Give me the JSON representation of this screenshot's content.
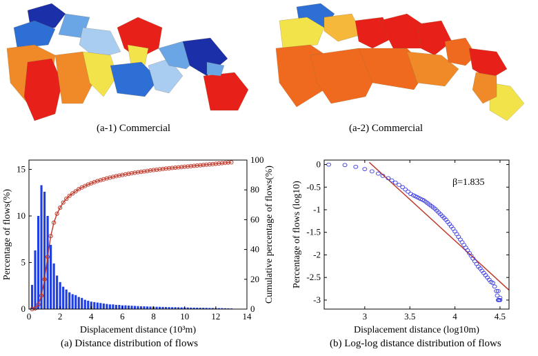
{
  "maps": [
    {
      "caption": "(a-1) Commercial"
    },
    {
      "caption": "(a-2) Commercial"
    }
  ],
  "captions": {
    "a": "(a) Distance distribution of flows",
    "b": "(b) Log-log distance distribution of flows"
  },
  "colors": {
    "bar": "#1f3fe0",
    "cum_line": "#c0392b",
    "scatter": "#3a3ae0",
    "fit": "#c0392b",
    "map_hot": [
      "#e8201a",
      "#ef6a1e",
      "#f08a28",
      "#f5b83a",
      "#f2e34a"
    ],
    "map_cold": [
      "#1a2fa8",
      "#2e6fd6",
      "#6aa6e6",
      "#a9cdf0",
      "#d8ecf7"
    ]
  },
  "chart_data": [
    {
      "type": "bar",
      "xlabel": "Displacement distance (10³m)",
      "ylabel": "Percentage of flows(%)",
      "y2label": "Cumulative percentage of flows(%)",
      "xlim": [
        0,
        14
      ],
      "ylim": [
        0,
        16
      ],
      "y2lim": [
        0,
        100
      ],
      "xticks": [
        0,
        2,
        4,
        6,
        8,
        10,
        12,
        14
      ],
      "yticks": [
        0,
        5,
        10,
        15
      ],
      "y2ticks": [
        0,
        20,
        40,
        60,
        80,
        100
      ],
      "bar_x": [
        0.2,
        0.4,
        0.6,
        0.8,
        1.0,
        1.2,
        1.4,
        1.6,
        1.8,
        2.0,
        2.2,
        2.4,
        2.6,
        2.8,
        3.0,
        3.2,
        3.4,
        3.6,
        3.8,
        4.0,
        4.2,
        4.4,
        4.6,
        4.8,
        5.0,
        5.2,
        5.4,
        5.6,
        5.8,
        6.0,
        6.2,
        6.4,
        6.6,
        6.8,
        7.0,
        7.2,
        7.4,
        7.6,
        7.8,
        8.0,
        8.2,
        8.4,
        8.6,
        8.8,
        9.0,
        9.2,
        9.4,
        9.6,
        9.8,
        10.0,
        10.2,
        10.4,
        10.6,
        10.8,
        11.0,
        11.2,
        11.4,
        11.6,
        11.8,
        12.0,
        12.2,
        12.4,
        12.6,
        12.8,
        13.0
      ],
      "values": [
        2.6,
        6.3,
        10.0,
        13.3,
        12.6,
        10.0,
        6.9,
        4.9,
        3.6,
        2.9,
        2.4,
        2.1,
        1.8,
        1.6,
        1.5,
        1.3,
        1.2,
        1.0,
        0.9,
        0.8,
        0.75,
        0.7,
        0.65,
        0.6,
        0.55,
        0.5,
        0.5,
        0.45,
        0.45,
        0.4,
        0.4,
        0.38,
        0.36,
        0.34,
        0.32,
        0.3,
        0.3,
        0.28,
        0.27,
        0.26,
        0.25,
        0.24,
        0.23,
        0.22,
        0.21,
        0.2,
        0.2,
        0.19,
        0.18,
        0.18,
        0.17,
        0.16,
        0.15,
        0.15,
        0.14,
        0.14,
        0.13,
        0.12,
        0.12,
        0.11,
        0.1,
        0.1,
        0.09,
        0.08,
        0.07
      ],
      "cumulative": {
        "x": [
          0.2,
          0.4,
          0.6,
          0.8,
          1.0,
          1.2,
          1.4,
          1.6,
          1.8,
          2.0,
          2.2,
          2.4,
          2.6,
          2.8,
          3.0,
          3.2,
          3.4,
          3.6,
          3.8,
          4.0,
          4.2,
          4.4,
          4.6,
          4.8,
          5.0,
          5.2,
          5.4,
          5.6,
          5.8,
          6.0,
          6.2,
          6.4,
          6.6,
          6.8,
          7.0,
          7.2,
          7.4,
          7.6,
          7.8,
          8.0,
          8.2,
          8.4,
          8.6,
          8.8,
          9.0,
          9.2,
          9.4,
          9.6,
          9.8,
          10.0,
          10.2,
          10.4,
          10.6,
          10.8,
          11.0,
          11.2,
          11.4,
          11.6,
          11.8,
          12.0,
          12.2,
          12.4,
          12.6,
          12.8,
          13.0
        ],
        "y": [
          0,
          0.5,
          3,
          9,
          20,
          35,
          49,
          58,
          64,
          68,
          71.5,
          74,
          76,
          77.6,
          79,
          80.5,
          81.6,
          82.6,
          83.6,
          84.4,
          85.2,
          85.9,
          86.5,
          87.1,
          87.7,
          88.2,
          88.7,
          89.2,
          89.6,
          90.0,
          90.4,
          90.8,
          91.2,
          91.5,
          91.8,
          92.1,
          92.4,
          92.7,
          93.0,
          93.3,
          93.5,
          93.8,
          94.0,
          94.3,
          94.5,
          94.7,
          94.9,
          95.1,
          95.3,
          95.5,
          95.7,
          95.9,
          96.1,
          96.3,
          96.5,
          96.7,
          96.9,
          97.1,
          97.3,
          97.5,
          97.7,
          97.9,
          98.1,
          98.3,
          98.5
        ]
      }
    },
    {
      "type": "scatter",
      "xlabel": "Displacement distance (log10m)",
      "ylabel": "Percentage of flows (log10)",
      "annotation": "β=1.835",
      "xlim": [
        2.55,
        4.6
      ],
      "ylim": [
        -3.2,
        0.1
      ],
      "xticks": [
        3,
        3.5,
        4,
        4.5
      ],
      "yticks": [
        0,
        -0.5,
        -1,
        -1.5,
        -2,
        -2.5,
        -3
      ],
      "xticklabels": [
        "3",
        "3.5",
        "4",
        "4.5"
      ],
      "yticklabels": [
        "0",
        "-0.5",
        "-1",
        "-1.5",
        "-2",
        "-2.5",
        "-3"
      ],
      "x": [
        2.6,
        2.78,
        2.9,
        3.0,
        3.08,
        3.15,
        3.2,
        3.26,
        3.3,
        3.34,
        3.38,
        3.42,
        3.45,
        3.48,
        3.51,
        3.54,
        3.56,
        3.58,
        3.6,
        3.62,
        3.64,
        3.66,
        3.68,
        3.7,
        3.72,
        3.74,
        3.76,
        3.78,
        3.8,
        3.82,
        3.84,
        3.86,
        3.88,
        3.9,
        3.92,
        3.94,
        3.96,
        3.98,
        4.0,
        4.02,
        4.04,
        4.06,
        4.08,
        4.1,
        4.12,
        4.14,
        4.16,
        4.18,
        4.2,
        4.22,
        4.24,
        4.26,
        4.28,
        4.3,
        4.32,
        4.34,
        4.36,
        4.38,
        4.4,
        4.42,
        4.44,
        4.46,
        4.47,
        4.48,
        4.48,
        4.49,
        4.5,
        4.5
      ],
      "y": [
        0,
        -0.01,
        -0.05,
        -0.1,
        -0.15,
        -0.2,
        -0.25,
        -0.3,
        -0.35,
        -0.4,
        -0.45,
        -0.5,
        -0.55,
        -0.6,
        -0.65,
        -0.68,
        -0.7,
        -0.72,
        -0.74,
        -0.76,
        -0.78,
        -0.8,
        -0.83,
        -0.86,
        -0.89,
        -0.92,
        -0.95,
        -0.98,
        -1.02,
        -1.06,
        -1.1,
        -1.14,
        -1.18,
        -1.22,
        -1.27,
        -1.32,
        -1.37,
        -1.42,
        -1.48,
        -1.54,
        -1.6,
        -1.66,
        -1.72,
        -1.78,
        -1.84,
        -1.9,
        -1.96,
        -2.02,
        -2.08,
        -2.14,
        -2.2,
        -2.26,
        -2.3,
        -2.35,
        -2.4,
        -2.45,
        -2.5,
        -2.55,
        -2.6,
        -2.62,
        -2.7,
        -2.8,
        -2.9,
        -3.0,
        -2.8,
        -3.0,
        -3.0,
        -2.95
      ],
      "fit": {
        "x": [
          3.05,
          4.6
        ],
        "y": [
          0.05,
          -2.78
        ]
      }
    }
  ]
}
